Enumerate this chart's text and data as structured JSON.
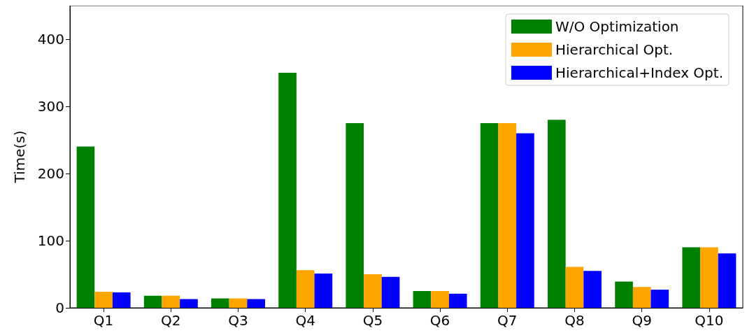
{
  "chart_data": {
    "type": "bar",
    "ylabel": "Time(s)",
    "categories": [
      "Q1",
      "Q2",
      "Q3",
      "Q4",
      "Q5",
      "Q6",
      "Q7",
      "Q8",
      "Q9",
      "Q10"
    ],
    "series": [
      {
        "name": "W/O Optimization",
        "color": "#008000",
        "values": [
          240,
          18,
          14,
          350,
          275,
          25,
          275,
          280,
          39,
          90
        ]
      },
      {
        "name": "Hierarchical Opt.",
        "color": "#ffa500",
        "values": [
          24,
          18,
          14,
          56,
          50,
          25,
          275,
          61,
          31,
          90
        ]
      },
      {
        "name": "Hierarchical+Index Opt.",
        "color": "#0000ff",
        "values": [
          23,
          13,
          13,
          51,
          46,
          21,
          260,
          55,
          27,
          81
        ]
      }
    ],
    "ylim": [
      0,
      450
    ],
    "yticks": [
      0,
      100,
      200,
      300,
      400
    ],
    "grid": false,
    "legend": "top right"
  }
}
